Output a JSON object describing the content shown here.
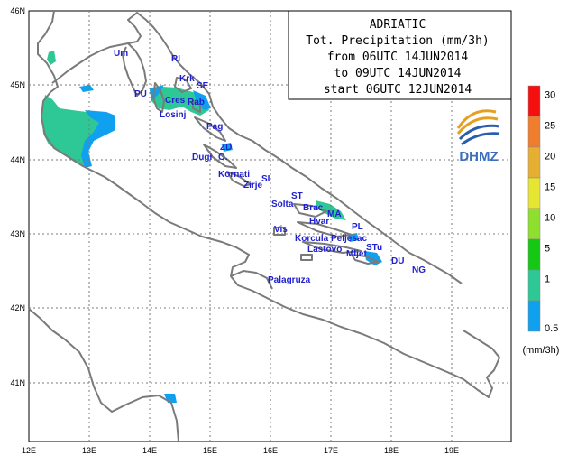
{
  "title": {
    "lines": [
      "ADRIATIC",
      "Tot. Precipitation (mm/3h)",
      "from 06UTC 14JUN2014",
      "to 09UTC 14JUN2014",
      "start 06UTC 12JUN2014"
    ]
  },
  "logo": {
    "text": "DHMZ"
  },
  "axes": {
    "lon_labels": [
      "12E",
      "13E",
      "14E",
      "15E",
      "16E",
      "17E",
      "18E",
      "19E"
    ],
    "lat_labels": [
      "46N",
      "45N",
      "44N",
      "43N",
      "42N",
      "41N"
    ]
  },
  "legend": {
    "unit": "(mm/3h)",
    "levels": [
      {
        "label": "30",
        "color": "#f50f0f"
      },
      {
        "label": "25",
        "color": "#f07d2d"
      },
      {
        "label": "20",
        "color": "#e6af32"
      },
      {
        "label": "15",
        "color": "#e6e632"
      },
      {
        "label": "10",
        "color": "#8fe02e"
      },
      {
        "label": "5",
        "color": "#14c814"
      },
      {
        "label": "1",
        "color": "#2dc896"
      },
      {
        "label": "0.5",
        "color": "#0fa0f0"
      }
    ]
  },
  "places": [
    {
      "name": "Um"
    },
    {
      "name": "RI"
    },
    {
      "name": "Krk"
    },
    {
      "name": "SE"
    },
    {
      "name": "PU"
    },
    {
      "name": "Cres"
    },
    {
      "name": "Rab"
    },
    {
      "name": "Losinj"
    },
    {
      "name": "Pag"
    },
    {
      "name": "ZD"
    },
    {
      "name": "Dugi"
    },
    {
      "name": "O."
    },
    {
      "name": "Kornati"
    },
    {
      "name": "SI"
    },
    {
      "name": "Zirje"
    },
    {
      "name": "ST"
    },
    {
      "name": "Solta"
    },
    {
      "name": "Brac"
    },
    {
      "name": "MA"
    },
    {
      "name": "Hvar"
    },
    {
      "name": "PL"
    },
    {
      "name": "Vis"
    },
    {
      "name": "Korcula Peljesac"
    },
    {
      "name": "Lastovo"
    },
    {
      "name": "STu"
    },
    {
      "name": "Mljet"
    },
    {
      "name": "DU"
    },
    {
      "name": "NG"
    },
    {
      "name": "Palagruza"
    }
  ],
  "colors": {
    "coast": "#7a7a7a",
    "grid": "#7a7a7a",
    "precip_light": "#2dc896",
    "precip_trace": "#0fa0f0"
  }
}
